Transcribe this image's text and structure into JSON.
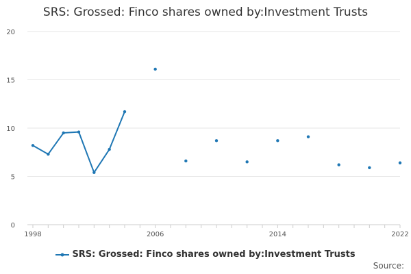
{
  "page_title": "SRS: Grossed: Finco shares owned by:Investment Trusts",
  "source_label": "Source:",
  "colors": {
    "series": "#1f77b4",
    "grid": "#e6e6e6",
    "axis": "#cccccc",
    "tick_text": "#555555"
  },
  "chart_data": {
    "type": "line",
    "title": "SRS: Grossed: Finco shares owned by:Investment Trusts",
    "xlabel": "",
    "ylabel": "",
    "xlim": [
      1998,
      2022
    ],
    "ylim": [
      0,
      20
    ],
    "x_ticks": [
      1998,
      2006,
      2014,
      2022
    ],
    "y_ticks": [
      0,
      5,
      10,
      15,
      20
    ],
    "grid": true,
    "legend_position": "bottom",
    "series": [
      {
        "name": "SRS: Grossed: Finco shares owned by:Investment Trusts",
        "x": [
          1998,
          1999,
          2000,
          2001,
          2002,
          2003,
          2004,
          2006,
          2008,
          2010,
          2012,
          2014,
          2016,
          2018,
          2020,
          2022
        ],
        "y": [
          8.2,
          7.3,
          9.5,
          9.6,
          5.4,
          7.8,
          11.7,
          16.1,
          6.6,
          8.7,
          6.5,
          8.7,
          9.1,
          6.2,
          5.9,
          6.4
        ]
      }
    ]
  }
}
